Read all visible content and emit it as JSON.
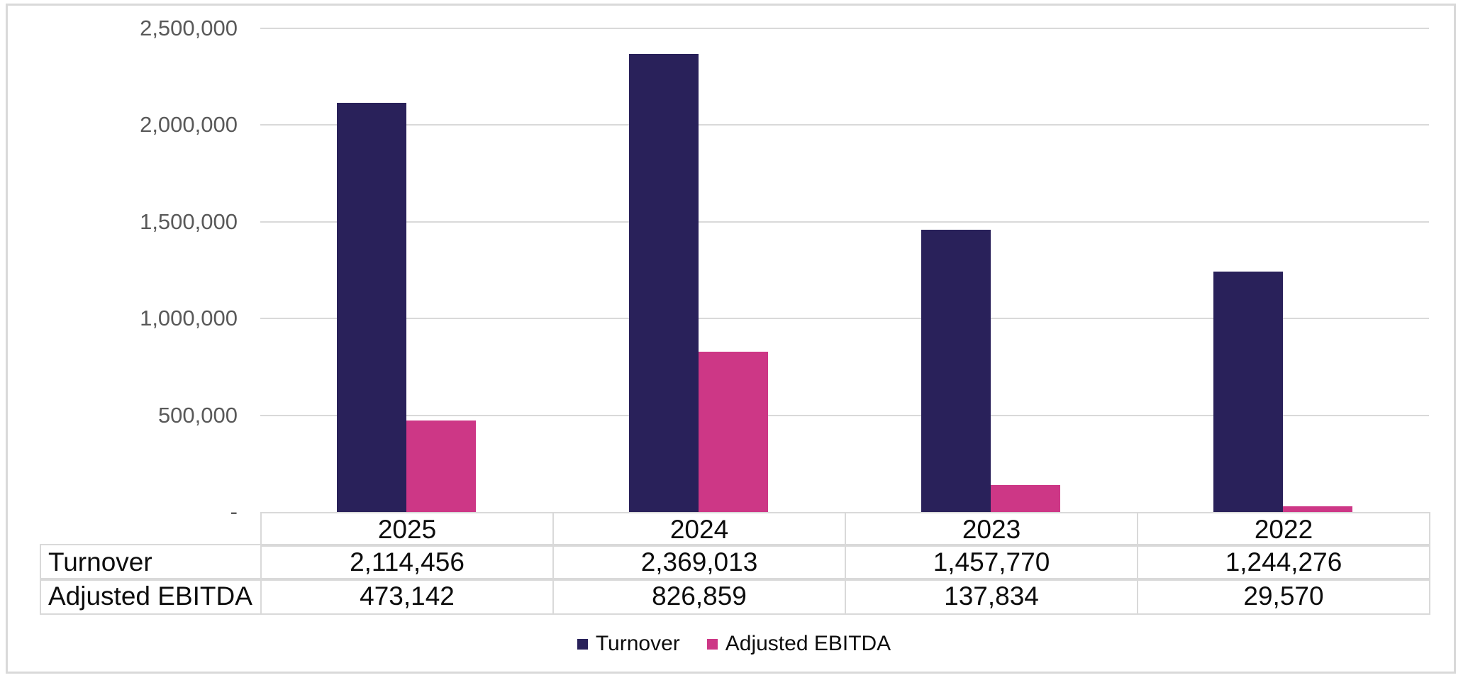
{
  "chart_data": {
    "type": "bar",
    "title": "",
    "categories": [
      "2025",
      "2024",
      "2023",
      "2022"
    ],
    "series": [
      {
        "name": "Turnover",
        "color": "#29215a",
        "values": [
          2114456,
          2369013,
          1457770,
          1244276
        ],
        "labels": [
          "2,114,456",
          "2,369,013",
          "1,457,770",
          "1,244,276"
        ]
      },
      {
        "name": "Adjusted EBITDA",
        "color": "#cd3786",
        "values": [
          473142,
          826859,
          137834,
          29570
        ],
        "labels": [
          "473,142",
          "826,859",
          "137,834",
          "29,570"
        ]
      }
    ],
    "y_axis": {
      "min": 0,
      "max": 2500000,
      "tick_interval": 500000,
      "tick_labels_bottom_to_top": [
        "-",
        "500,000",
        "1,000,000",
        "1,500,000",
        "2,000,000",
        "2,500,000"
      ]
    },
    "grid": true,
    "grid_color": "#d9d9d9",
    "axis_label_color": "#595959",
    "frame_border_color": "#d9d9d9",
    "legend_position": "bottom",
    "data_table_shown": true
  }
}
